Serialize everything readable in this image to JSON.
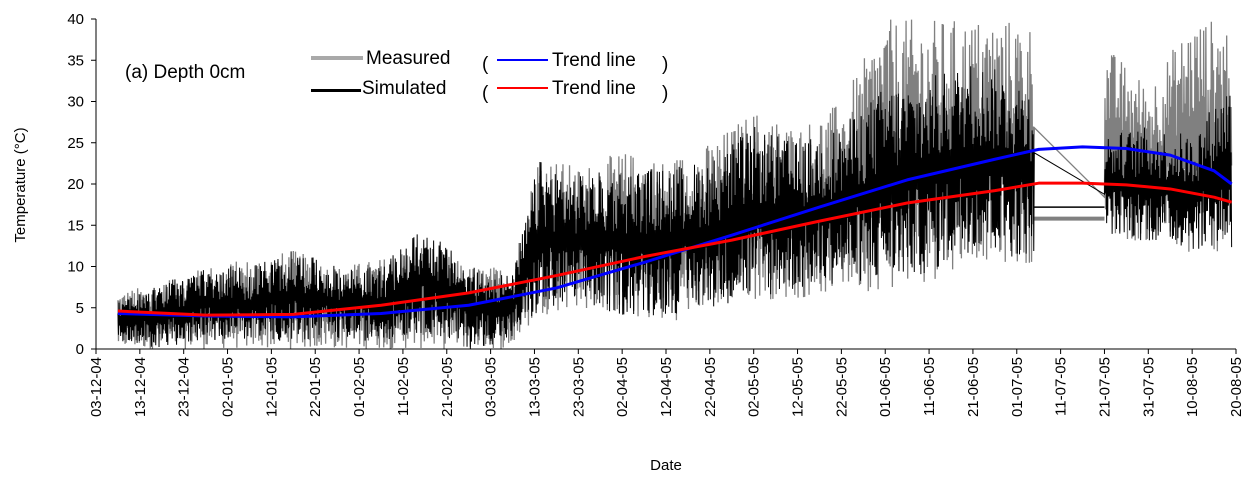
{
  "chart_data": {
    "type": "line",
    "annotation": "(a) Depth 0cm",
    "xlabel": "Date",
    "ylabel": "Temperature (°C)",
    "xlim": [
      "03-12-04",
      "20-08-05"
    ],
    "ylim": [
      0,
      40
    ],
    "y_ticks": [
      0,
      5,
      10,
      15,
      20,
      25,
      30,
      35,
      40
    ],
    "x_ticks": [
      "03-12-04",
      "13-12-04",
      "23-12-04",
      "02-01-05",
      "12-01-05",
      "22-01-05",
      "01-02-05",
      "11-02-05",
      "21-02-05",
      "03-03-05",
      "13-03-05",
      "23-03-05",
      "02-04-05",
      "12-04-05",
      "22-04-05",
      "02-05-05",
      "12-05-05",
      "22-05-05",
      "01-06-05",
      "11-06-05",
      "21-06-05",
      "01-07-05",
      "11-07-05",
      "21-07-05",
      "31-07-05",
      "10-08-05",
      "20-08-05"
    ],
    "grid": false,
    "legend": {
      "placement": "top-left",
      "entries": [
        {
          "label": "Measured",
          "color": "#808080"
        },
        {
          "label": "Simulated",
          "color": "#000000"
        }
      ],
      "trend_entries": [
        {
          "label": "Trend line",
          "color": "#0000ff"
        },
        {
          "label": "Trend line",
          "color": "#ff0000"
        }
      ]
    },
    "series": [
      {
        "name": "Measured",
        "style": "dense-band",
        "color": "#808080",
        "x": [
          "08-12-04",
          "18-12-04",
          "28-12-04",
          "07-01-05",
          "17-01-05",
          "27-01-05",
          "06-02-05",
          "16-02-05",
          "26-02-05",
          "08-03-05",
          "14-03-05",
          "23-03-05",
          "02-04-05",
          "12-04-05",
          "22-04-05",
          "02-05-05",
          "12-05-05",
          "22-05-05",
          "01-06-05",
          "11-06-05",
          "21-06-05",
          "01-07-05",
          "21-07-05",
          "31-07-05",
          "10-08-05",
          "19-08-05"
        ],
        "min": [
          0,
          0,
          0,
          0,
          0,
          0,
          0,
          0,
          0,
          0,
          4,
          5,
          4,
          3,
          5,
          6,
          6,
          7,
          7,
          8,
          11,
          10,
          13,
          13,
          11,
          12
        ],
        "max": [
          7,
          8,
          10,
          11,
          12,
          10,
          11,
          13,
          10,
          10,
          24,
          22,
          24,
          23,
          25,
          29,
          27,
          30,
          40,
          40,
          40,
          40,
          37,
          32,
          40,
          40
        ]
      },
      {
        "name": "Simulated",
        "style": "dense-band",
        "color": "#000000",
        "x": [
          "08-12-04",
          "18-12-04",
          "28-12-04",
          "07-01-05",
          "17-01-05",
          "27-01-05",
          "06-02-05",
          "16-02-05",
          "26-02-05",
          "08-03-05",
          "14-03-05",
          "23-03-05",
          "02-04-05",
          "12-04-05",
          "22-04-05",
          "02-05-05",
          "12-05-05",
          "22-05-05",
          "01-06-05",
          "11-06-05",
          "21-06-05",
          "01-07-05",
          "21-07-05",
          "31-07-05",
          "10-08-05",
          "19-08-05"
        ],
        "min": [
          1,
          0,
          1,
          1,
          1,
          1,
          1,
          2,
          0,
          1,
          4,
          5,
          4,
          4,
          5,
          6,
          7,
          8,
          8,
          9,
          12,
          11,
          14,
          13,
          12,
          12
        ],
        "max": [
          6,
          8,
          10,
          10,
          12,
          10,
          10,
          15,
          10,
          9,
          23,
          21,
          22,
          22,
          23,
          27,
          25,
          27,
          32,
          33,
          35,
          33,
          26,
          27,
          26,
          33
        ]
      },
      {
        "name": "Measured",
        "style": "flat-gap",
        "color": "#808080",
        "x": [
          "05-07-05",
          "21-07-05"
        ],
        "y": [
          15.8,
          15.8
        ]
      },
      {
        "name": "Simulated",
        "style": "flat-gap",
        "color": "#000000",
        "x": [
          "05-07-05",
          "21-07-05"
        ],
        "y": [
          17.2,
          17.2
        ]
      },
      {
        "name": "Trend line",
        "trend_of": "Measured",
        "color": "#0000ff",
        "x": [
          "08-12-04",
          "28-12-04",
          "17-01-05",
          "06-02-05",
          "26-02-05",
          "18-03-05",
          "07-04-05",
          "27-04-05",
          "17-05-05",
          "06-06-05",
          "26-06-05",
          "06-07-05",
          "16-07-05",
          "26-07-05",
          "05-08-05",
          "15-08-05",
          "19-08-05"
        ],
        "y": [
          4.3,
          4.0,
          3.9,
          4.3,
          5.3,
          7.4,
          10.5,
          13.8,
          17.2,
          20.5,
          23.0,
          24.2,
          24.5,
          24.3,
          23.5,
          21.6,
          20.0
        ]
      },
      {
        "name": "Trend line",
        "trend_of": "Simulated",
        "color": "#ff0000",
        "x": [
          "08-12-04",
          "28-12-04",
          "17-01-05",
          "06-02-05",
          "26-02-05",
          "18-03-05",
          "07-04-05",
          "27-04-05",
          "17-05-05",
          "06-06-05",
          "26-06-05",
          "06-07-05",
          "16-07-05",
          "26-07-05",
          "05-08-05",
          "15-08-05",
          "19-08-05"
        ],
        "y": [
          4.6,
          4.1,
          4.2,
          5.3,
          6.8,
          8.9,
          11.2,
          13.2,
          15.5,
          17.7,
          19.2,
          20.1,
          20.1,
          19.9,
          19.4,
          18.4,
          17.8
        ]
      }
    ]
  }
}
